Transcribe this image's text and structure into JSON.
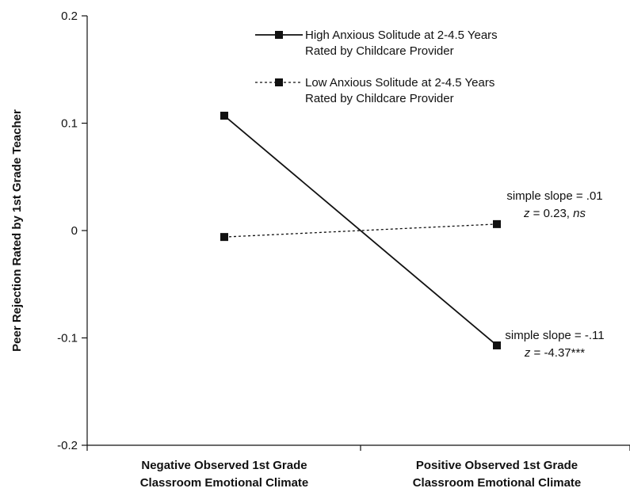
{
  "chart_data": {
    "type": "line",
    "categories": [
      [
        "Negative Observed 1st Grade",
        "Classroom Emotional Climate"
      ],
      [
        "Positive Observed 1st Grade",
        "Classroom Emotional Climate"
      ]
    ],
    "ylabel": "Peer Rejection Rated by 1st Grade Teacher",
    "xlabel": "",
    "ylim": [
      -0.2,
      0.2
    ],
    "yticks": [
      {
        "value": 0.2,
        "label": "0.2"
      },
      {
        "value": 0.1,
        "label": "0.1"
      },
      {
        "value": 0.0,
        "label": "0"
      },
      {
        "value": -0.1,
        "label": "-0.1"
      },
      {
        "value": -0.2,
        "label": "-0.2"
      }
    ],
    "grid": false,
    "legend_position": "top-right",
    "series": [
      {
        "name": "High Anxious Solitude at 2-4.5 Years\nRated by Childcare Provider",
        "style": "solid",
        "values": [
          0.107,
          -0.107
        ],
        "annotation": {
          "line1": "simple slope = -.11",
          "z_prefix": "z",
          "z_rest": " = -4.37***",
          "ns": ""
        }
      },
      {
        "name": "Low Anxious Solitude at 2-4.5 Years\nRated by Childcare Provider",
        "style": "dashed",
        "values": [
          -0.006,
          0.006
        ],
        "annotation": {
          "line1": "simple slope = .01",
          "z_prefix": "z",
          "z_rest": " = 0.23, ",
          "ns": "ns"
        }
      }
    ],
    "colors": {
      "line": "#111111",
      "marker": "#111111"
    }
  }
}
